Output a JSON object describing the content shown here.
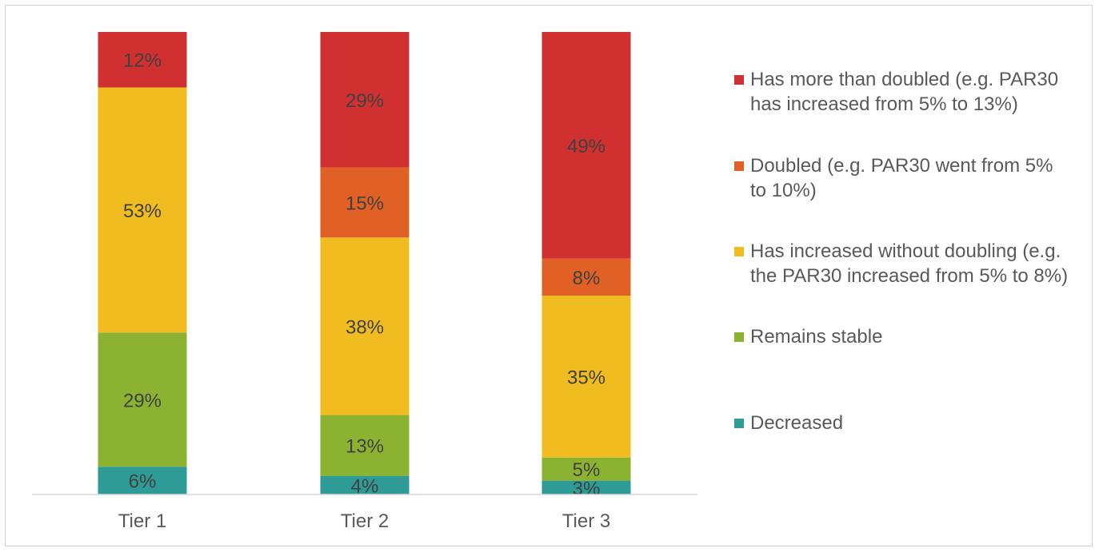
{
  "chart_data": {
    "type": "bar",
    "stacked": true,
    "orientation": "vertical",
    "categories": [
      "Tier 1",
      "Tier 2",
      "Tier 3"
    ],
    "ylim": [
      0,
      100
    ],
    "grid": false,
    "legend_position": "right",
    "series": [
      {
        "name": "Decreased",
        "color": "#2e9b96",
        "values": [
          6,
          4,
          3
        ],
        "labels": [
          "6%",
          "4%",
          "3%"
        ]
      },
      {
        "name": "Remains stable",
        "color": "#8cb232",
        "values": [
          29,
          13,
          5
        ],
        "labels": [
          "29%",
          "13%",
          "5%"
        ]
      },
      {
        "name": "Has increased without doubling (e.g. the PAR30 increased from 5% to 8%)",
        "color": "#f0bc1f",
        "values": [
          53,
          38,
          35
        ],
        "labels": [
          "53%",
          "38%",
          "35%"
        ]
      },
      {
        "name": "Doubled (e.g. PAR30 went from 5% to 10%)",
        "color": "#e06026",
        "values": [
          0,
          15,
          8
        ],
        "labels": [
          "",
          "15%",
          "8%"
        ]
      },
      {
        "name": "Has more than doubled (e.g. PAR30 has increased from 5% to 13%)",
        "color": "#d03030",
        "values": [
          12,
          29,
          49
        ],
        "labels": [
          "12%",
          "29%",
          "49%"
        ]
      }
    ]
  },
  "legend": {
    "items": [
      {
        "label": "Has more than doubled (e.g. PAR30 has increased from 5% to 13%)",
        "color": "#d03030"
      },
      {
        "label": "Doubled (e.g. PAR30 went from 5% to 10%)",
        "color": "#e06026"
      },
      {
        "label": "Has increased without doubling (e.g. the PAR30 increased from 5% to 8%)",
        "color": "#f0bc1f"
      },
      {
        "label": "Remains stable",
        "color": "#8cb232"
      },
      {
        "label": "Decreased",
        "color": "#2e9b96"
      }
    ]
  }
}
